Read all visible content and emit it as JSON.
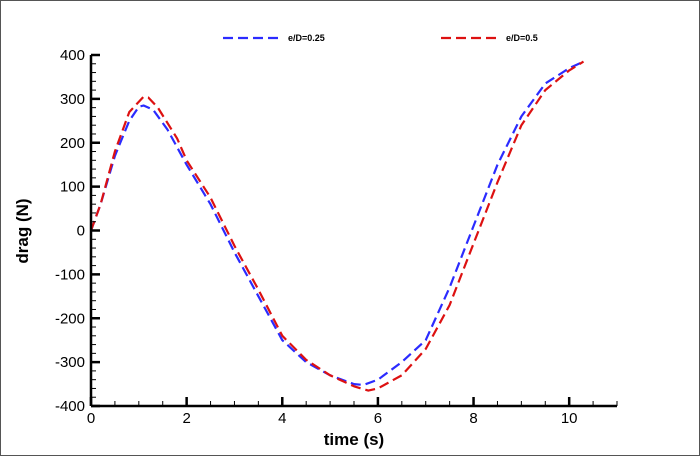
{
  "chart_data": {
    "type": "line",
    "title": "",
    "xlabel": "time (s)",
    "ylabel": "drag (N)",
    "xlim": [
      0,
      11
    ],
    "ylim": [
      -400,
      400
    ],
    "xticks": [
      "0",
      "2",
      "4",
      "6",
      "8",
      "10"
    ],
    "yticks": [
      "-400",
      "-300",
      "-200",
      "-100",
      "0",
      "100",
      "200",
      "300",
      "400"
    ],
    "grid": false,
    "legend_position": "top",
    "series": [
      {
        "name": "e/D=0.25",
        "color": "#2b2bff",
        "style": "dashed",
        "x": [
          0,
          0.2,
          0.5,
          0.8,
          1.0,
          1.1,
          1.3,
          1.6,
          2.0,
          2.5,
          3.0,
          3.5,
          4.0,
          4.5,
          5.0,
          5.5,
          5.7,
          6.0,
          6.5,
          7.0,
          7.5,
          8.0,
          8.5,
          9.0,
          9.5,
          10.0,
          10.3
        ],
        "y": [
          0,
          60,
          170,
          250,
          282,
          285,
          275,
          230,
          150,
          60,
          -50,
          -150,
          -250,
          -300,
          -330,
          -350,
          -352,
          -340,
          -300,
          -250,
          -130,
          10,
          150,
          260,
          335,
          370,
          385
        ]
      },
      {
        "name": "e/D=0.5",
        "color": "#dd1111",
        "style": "dashed",
        "x": [
          0,
          0.2,
          0.5,
          0.8,
          1.1,
          1.2,
          1.4,
          1.8,
          2.0,
          2.5,
          3.0,
          3.5,
          4.0,
          4.5,
          5.0,
          5.5,
          5.8,
          6.0,
          6.5,
          7.0,
          7.5,
          8.0,
          8.5,
          9.0,
          9.5,
          10.0,
          10.3
        ],
        "y": [
          0,
          60,
          180,
          270,
          305,
          303,
          280,
          210,
          160,
          75,
          -35,
          -135,
          -240,
          -295,
          -330,
          -355,
          -365,
          -360,
          -330,
          -270,
          -170,
          -30,
          110,
          240,
          320,
          365,
          385
        ]
      }
    ]
  }
}
